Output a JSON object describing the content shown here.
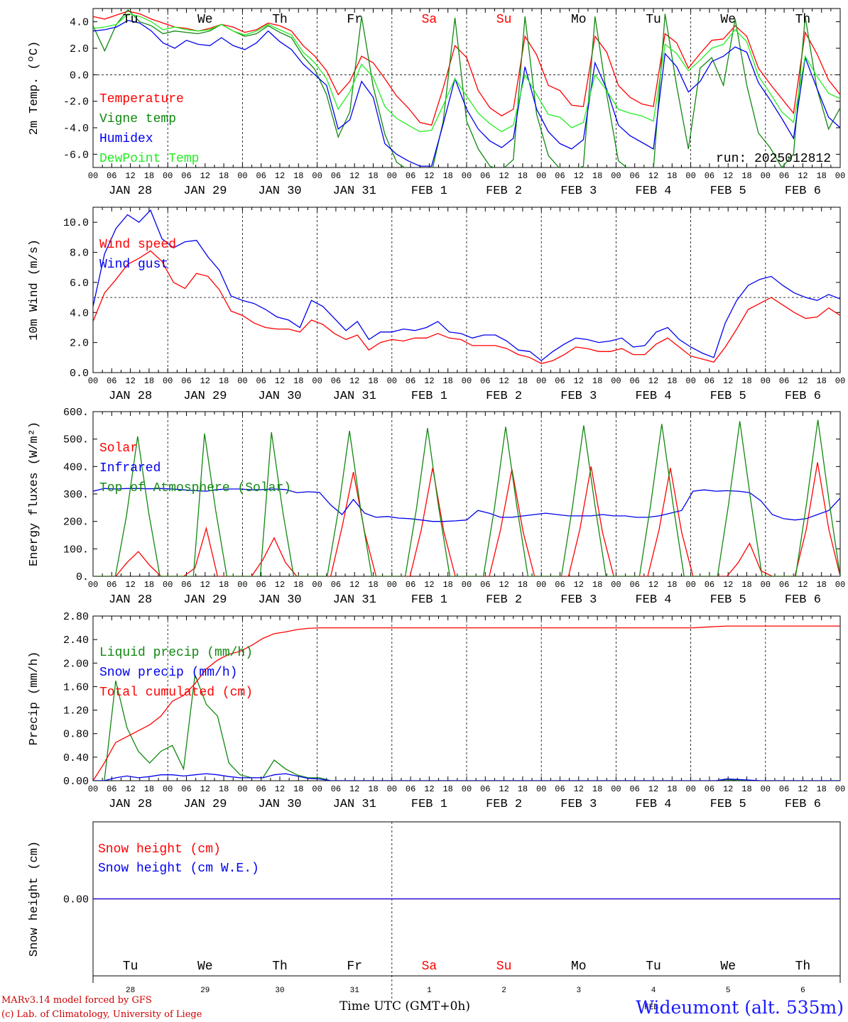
{
  "footer": {
    "credit_line1": "MARv3.14 model forced by GFS",
    "credit_line2": "(c) Lab. of Climatology, University of Liege",
    "x_title": "Time UTC (GMT+0h)",
    "station": "Wideumont (alt. 535m)",
    "month_label": "FEB"
  },
  "colors": {
    "red": "#ff0000",
    "green": "#118811",
    "blue": "#0000ee",
    "lightgreen": "#22ee22",
    "sunday": "#ff0000"
  },
  "hour_labels": [
    "00",
    "06",
    "12",
    "18"
  ],
  "day_names": [
    "Tu",
    "We",
    "Th",
    "Fr",
    "Sa",
    "Su",
    "Mo",
    "Tu",
    "We",
    "Th"
  ],
  "day_name_colors": [
    "black",
    "black",
    "black",
    "black",
    "red",
    "red",
    "black",
    "black",
    "black",
    "black"
  ],
  "date_labels": [
    "JAN 28",
    "JAN 29",
    "JAN 30",
    "JAN 31",
    "FEB  1",
    "FEB  2",
    "FEB  3",
    "FEB  4",
    "FEB  5",
    "FEB  6"
  ],
  "day_numbers": [
    "28",
    "29",
    "30",
    "31",
    "1",
    "2",
    "3",
    "4",
    "5",
    "6"
  ],
  "chart_data": [
    {
      "type": "line",
      "ylabel": "2m Temp. (ºC)",
      "ylim": [
        -7,
        5
      ],
      "yticks": [
        "4.0",
        "2.0",
        "0.0",
        "-2.0",
        "-4.0",
        "-6.0"
      ],
      "ytick_values": [
        4,
        2,
        0,
        -2,
        -4,
        -6
      ],
      "annotation": "run: 2025012812",
      "x_unit": "hours from 2025-01-28 00 UTC, 3-hourly",
      "series": [
        {
          "name": "Temperature",
          "color": "red",
          "values": [
            4.4,
            4.2,
            4.5,
            4.8,
            4.6,
            4.2,
            3.9,
            3.6,
            3.5,
            3.3,
            3.5,
            3.8,
            3.6,
            3.2,
            3.4,
            3.9,
            3.7,
            3.3,
            2.2,
            1.4,
            0.3,
            -1.5,
            -0.5,
            1.4,
            0.9,
            -0.3,
            -1.6,
            -2.5,
            -3.6,
            -3.8,
            -1.0,
            2.2,
            1.3,
            -1.2,
            -2.5,
            -3.1,
            -2.6,
            2.9,
            1.5,
            -0.8,
            -1.2,
            -2.3,
            -2.4,
            2.9,
            1.7,
            -0.8,
            -1.7,
            -2.2,
            -2.4,
            3.1,
            2.4,
            0.5,
            1.6,
            2.6,
            2.7,
            3.7,
            2.9,
            0.5,
            -0.7,
            -1.8,
            -2.9,
            3.2,
            1.6,
            -0.4,
            -1.5
          ]
        },
        {
          "name": "Vigne temp",
          "color": "green",
          "values": [
            3.7,
            1.8,
            3.8,
            4.9,
            4.0,
            3.7,
            3.1,
            3.3,
            3.2,
            3.1,
            3.3,
            3.8,
            3.3,
            2.9,
            3.1,
            3.7,
            3.2,
            2.8,
            1.4,
            0.4,
            -1.5,
            -4.7,
            -2.8,
            4.4,
            -0.9,
            -4.5,
            -6.6,
            -7.2,
            -7.4,
            -7.4,
            -3.5,
            4.3,
            -3.5,
            -5.6,
            -6.9,
            -7.2,
            -6.4,
            4.4,
            -3.0,
            -6.1,
            -7.1,
            -7.3,
            -6.9,
            4.4,
            -1.5,
            -6.5,
            -7.2,
            -7.4,
            -7.2,
            4.6,
            -0.9,
            -5.6,
            0.5,
            1.3,
            -0.8,
            4.2,
            -0.8,
            -4.4,
            -5.5,
            -7.0,
            -6.0,
            4.4,
            -1.0,
            -4.1,
            -2.5
          ]
        },
        {
          "name": "Humidex",
          "color": "blue",
          "values": [
            3.3,
            3.4,
            3.6,
            4.1,
            3.9,
            3.3,
            2.4,
            2.0,
            2.6,
            2.3,
            2.2,
            2.8,
            2.2,
            1.9,
            2.4,
            3.3,
            2.5,
            1.9,
            0.8,
            0.0,
            -0.8,
            -4.1,
            -3.4,
            -0.5,
            -1.7,
            -5.2,
            -6.0,
            -6.5,
            -6.9,
            -6.9,
            -3.7,
            -0.3,
            -2.6,
            -4.1,
            -5.0,
            -5.5,
            -4.8,
            0.6,
            -2.6,
            -4.3,
            -5.2,
            -5.6,
            -4.9,
            0.9,
            -1.1,
            -3.8,
            -4.6,
            -5.1,
            -5.6,
            1.6,
            0.6,
            -1.3,
            -0.5,
            1.0,
            1.4,
            2.1,
            1.7,
            -0.6,
            -1.9,
            -3.3,
            -4.8,
            1.3,
            -1.0,
            -3.2,
            -4.0
          ]
        },
        {
          "name": "DewPoint Temp",
          "color": "lightgreen",
          "values": [
            3.5,
            3.6,
            3.8,
            4.6,
            4.4,
            4.0,
            3.4,
            3.6,
            3.4,
            3.3,
            3.4,
            3.8,
            3.3,
            3.0,
            3.3,
            3.8,
            3.4,
            3.0,
            1.7,
            0.9,
            -0.3,
            -2.6,
            -1.3,
            0.8,
            -0.2,
            -2.4,
            -3.3,
            -3.8,
            -4.3,
            -4.2,
            -2.3,
            -0.3,
            -1.6,
            -2.9,
            -3.7,
            -4.3,
            -3.8,
            0.0,
            -1.5,
            -3.0,
            -3.2,
            -4.0,
            -3.6,
            0.0,
            -1.2,
            -2.6,
            -2.9,
            -3.1,
            -3.5,
            2.3,
            1.6,
            0.3,
            1.1,
            2.0,
            2.3,
            3.4,
            2.5,
            -0.1,
            -1.4,
            -2.8,
            -3.6,
            1.4,
            -0.1,
            -1.4,
            -1.8
          ]
        }
      ]
    },
    {
      "type": "line",
      "ylabel": "10m Wind (m/s)",
      "ylim": [
        0,
        11
      ],
      "yticks": [
        "10.0",
        "8.0",
        "6.0",
        "4.0",
        "2.0",
        "0.0"
      ],
      "ytick_values": [
        10,
        8,
        6,
        4,
        2,
        0
      ],
      "series": [
        {
          "name": "Wind speed",
          "color": "red",
          "values": [
            3.4,
            5.3,
            6.2,
            7.2,
            7.6,
            8.1,
            7.4,
            6.0,
            5.6,
            6.6,
            6.4,
            5.5,
            4.1,
            3.8,
            3.3,
            3.0,
            2.9,
            2.9,
            2.7,
            3.5,
            3.2,
            2.6,
            2.2,
            2.5,
            1.5,
            2.0,
            2.2,
            2.1,
            2.3,
            2.3,
            2.6,
            2.3,
            2.2,
            1.8,
            1.8,
            1.8,
            1.6,
            1.2,
            1.0,
            0.6,
            0.8,
            1.2,
            1.7,
            1.6,
            1.4,
            1.4,
            1.6,
            1.2,
            1.2,
            1.9,
            2.3,
            1.7,
            1.1,
            0.9,
            0.7,
            1.7,
            2.9,
            4.2,
            4.6,
            5.0,
            4.5,
            4.0,
            3.6,
            3.7,
            4.3,
            3.8
          ]
        },
        {
          "name": "Wind gust",
          "color": "blue",
          "values": [
            4.4,
            7.9,
            9.6,
            10.5,
            10.0,
            10.8,
            8.9,
            8.3,
            8.7,
            8.8,
            7.7,
            6.8,
            5.1,
            4.8,
            4.6,
            4.2,
            3.7,
            3.5,
            3.0,
            4.8,
            4.4,
            3.6,
            2.8,
            3.4,
            2.2,
            2.7,
            2.7,
            2.9,
            2.8,
            3.0,
            3.4,
            2.7,
            2.6,
            2.3,
            2.5,
            2.5,
            2.1,
            1.5,
            1.4,
            0.8,
            1.4,
            1.9,
            2.3,
            2.2,
            2.0,
            2.1,
            2.3,
            1.7,
            1.8,
            2.7,
            3.0,
            2.2,
            1.7,
            1.3,
            1.0,
            3.3,
            4.8,
            5.8,
            6.2,
            6.4,
            5.8,
            5.3,
            5.0,
            4.8,
            5.2,
            4.9
          ]
        }
      ]
    },
    {
      "type": "line",
      "ylabel": "Energy fluxes (W/m²)",
      "ylim": [
        0,
        600
      ],
      "yticks": [
        "600.",
        "500.",
        "400.",
        "300.",
        "200.",
        "100.",
        "0."
      ],
      "ytick_values": [
        600,
        500,
        400,
        300,
        200,
        100,
        0
      ],
      "series": [
        {
          "name": "Solar",
          "color": "red",
          "values": [
            0,
            0,
            0,
            50,
            90,
            40,
            0,
            0,
            0,
            30,
            175,
            0,
            0,
            0,
            0,
            60,
            140,
            50,
            0,
            0,
            0,
            0,
            180,
            380,
            160,
            0,
            0,
            0,
            0,
            170,
            395,
            160,
            0,
            0,
            0,
            0,
            170,
            390,
            160,
            0,
            0,
            0,
            0,
            170,
            400,
            160,
            0,
            0,
            0,
            0,
            170,
            395,
            160,
            0,
            0,
            0,
            0,
            50,
            120,
            20,
            0,
            0,
            0,
            170,
            415,
            170,
            0
          ]
        },
        {
          "name": "Infrared",
          "color": "blue",
          "values": [
            310,
            320,
            318,
            320,
            320,
            319,
            320,
            318,
            315,
            312,
            310,
            316,
            318,
            318,
            315,
            316,
            318,
            316,
            305,
            308,
            306,
            260,
            225,
            280,
            230,
            215,
            218,
            212,
            210,
            205,
            200,
            200,
            202,
            205,
            240,
            230,
            215,
            215,
            220,
            225,
            230,
            225,
            220,
            220,
            220,
            225,
            220,
            220,
            215,
            215,
            220,
            230,
            240,
            310,
            315,
            310,
            312,
            310,
            305,
            275,
            225,
            210,
            205,
            210,
            225,
            240,
            285
          ]
        },
        {
          "name": "Top of Atmosphere (Solar)",
          "color": "green",
          "values": [
            0,
            0,
            0,
            220,
            510,
            230,
            0,
            0,
            0,
            0,
            520,
            240,
            0,
            0,
            0,
            0,
            525,
            240,
            0,
            0,
            0,
            0,
            240,
            530,
            245,
            0,
            0,
            0,
            0,
            245,
            540,
            250,
            0,
            0,
            0,
            0,
            250,
            545,
            255,
            0,
            0,
            0,
            0,
            255,
            550,
            260,
            0,
            0,
            0,
            0,
            260,
            555,
            265,
            0,
            0,
            0,
            0,
            265,
            565,
            270,
            0,
            0,
            0,
            0,
            270,
            570,
            275,
            0
          ]
        }
      ]
    },
    {
      "type": "line",
      "ylabel": "Precip (mm/h)",
      "ylim": [
        0,
        2.8
      ],
      "yticks": [
        "2.80",
        "2.40",
        "2.00",
        "1.60",
        "1.20",
        "0.80",
        "0.40",
        "0.00"
      ],
      "ytick_values": [
        2.8,
        2.4,
        2.0,
        1.6,
        1.2,
        0.8,
        0.4,
        0.0
      ],
      "series": [
        {
          "name": "Liquid precip (mm/h)",
          "color": "green",
          "values": [
            0,
            0,
            1.7,
            0.9,
            0.5,
            0.3,
            0.5,
            0.6,
            0.2,
            1.8,
            1.3,
            1.1,
            0.3,
            0.1,
            0.05,
            0.05,
            0.35,
            0.2,
            0.1,
            0.05,
            0.05,
            0,
            0,
            0,
            0,
            0,
            0,
            0,
            0,
            0,
            0,
            0,
            0,
            0,
            0,
            0,
            0,
            0,
            0,
            0,
            0,
            0,
            0,
            0,
            0,
            0,
            0,
            0,
            0,
            0,
            0,
            0,
            0,
            0,
            0,
            0,
            0.02,
            0.01,
            0,
            0,
            0,
            0,
            0,
            0,
            0,
            0,
            0
          ]
        },
        {
          "name": "Snow precip (mm/h)",
          "color": "blue",
          "values": [
            0,
            0,
            0.05,
            0.08,
            0.05,
            0.07,
            0.1,
            0.1,
            0.08,
            0.1,
            0.12,
            0.1,
            0.07,
            0.05,
            0.05,
            0.05,
            0.1,
            0.12,
            0.08,
            0.04,
            0.03,
            0,
            0,
            0,
            0,
            0,
            0,
            0,
            0,
            0,
            0,
            0,
            0,
            0,
            0,
            0,
            0,
            0,
            0,
            0,
            0,
            0,
            0,
            0,
            0,
            0,
            0,
            0,
            0,
            0,
            0,
            0,
            0,
            0,
            0,
            0,
            0.03,
            0.02,
            0.01,
            0,
            0,
            0,
            0,
            0,
            0,
            0,
            0
          ]
        },
        {
          "name": "Total cumulated (cm)",
          "color": "red",
          "values": [
            0,
            0.3,
            0.65,
            0.75,
            0.85,
            0.95,
            1.1,
            1.35,
            1.45,
            1.65,
            1.9,
            2.05,
            2.15,
            2.2,
            2.3,
            2.42,
            2.5,
            2.53,
            2.57,
            2.59,
            2.6,
            2.6,
            2.6,
            2.6,
            2.6,
            2.6,
            2.6,
            2.6,
            2.6,
            2.6,
            2.6,
            2.6,
            2.6,
            2.6,
            2.6,
            2.6,
            2.6,
            2.6,
            2.6,
            2.6,
            2.6,
            2.6,
            2.6,
            2.6,
            2.6,
            2.6,
            2.6,
            2.6,
            2.6,
            2.6,
            2.6,
            2.6,
            2.6,
            2.6,
            2.61,
            2.62,
            2.63,
            2.63,
            2.63,
            2.63,
            2.63,
            2.63,
            2.63,
            2.63,
            2.63,
            2.63,
            2.63
          ]
        }
      ]
    },
    {
      "type": "line",
      "ylabel": "Snow height (cm)",
      "ylim": [
        -1,
        1
      ],
      "yticks": [
        "0.00"
      ],
      "ytick_values": [
        0
      ],
      "series": [
        {
          "name": "Snow height (cm)",
          "color": "red",
          "values": [
            0,
            0
          ]
        },
        {
          "name": "Snow height (cm W.E.)",
          "color": "blue",
          "values": [
            0,
            0
          ]
        }
      ]
    }
  ]
}
